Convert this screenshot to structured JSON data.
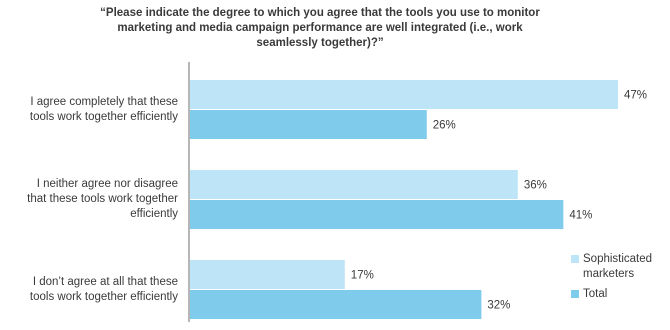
{
  "chart_data": {
    "type": "bar",
    "orientation": "horizontal",
    "title": "“Please indicate the degree to which you agree that the tools you use to monitor marketing and media campaign performance are well integrated (i.e., work seamlessly together)?”",
    "title_lines": [
      "“Please indicate the degree to which you agree that the tools you use to monitor",
      "marketing and media campaign performance are well integrated (i.e., work",
      "seamlessly together)?”"
    ],
    "categories": [
      "I agree completely that these tools work together efficiently",
      "I neither agree nor disagree that these tools work together efficiently",
      "I don’t agree at all that these tools work together efficiently"
    ],
    "category_lines": [
      [
        "I agree completely that these",
        "tools work together efficiently"
      ],
      [
        "I neither agree nor disagree",
        "that these tools work together",
        "efficiently"
      ],
      [
        "I don’t agree at all that these",
        "tools work together efficiently"
      ]
    ],
    "series": [
      {
        "name": "Sophisticated marketers",
        "name_lines": [
          "Sophisticated",
          "marketers"
        ],
        "values": [
          47,
          36,
          17
        ],
        "color": "#bee5f7"
      },
      {
        "name": "Total",
        "name_lines": [
          "Total"
        ],
        "values": [
          26,
          41,
          32
        ],
        "color": "#7ecbec"
      }
    ],
    "value_suffix": "%",
    "xlim": [
      0,
      50
    ],
    "grid": false,
    "legend_position": "right"
  }
}
